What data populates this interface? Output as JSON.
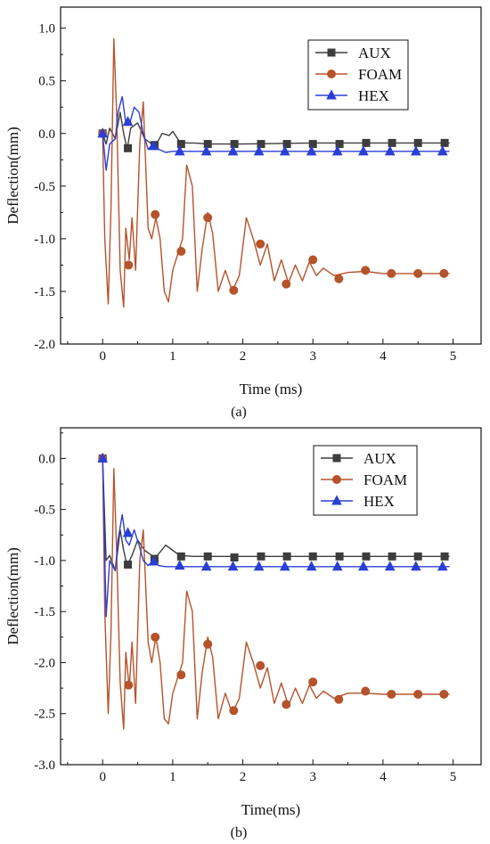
{
  "chart_data": [
    {
      "type": "line",
      "panel_label": "(a)",
      "xlabel": "Time (ms)",
      "ylabel": "Deflection(mm)",
      "xlim": [
        -0.6,
        5.4
      ],
      "ylim": [
        -2.0,
        1.2
      ],
      "xticks": [
        "0",
        "1",
        "2",
        "3",
        "4",
        "5"
      ],
      "yticks": [
        "1.0",
        "0.5",
        "0.0",
        "-0.5",
        "-1.0",
        "-1.5",
        "-2.0"
      ],
      "legend": "top-right",
      "series": [
        {
          "name": "AUX",
          "color": "#3d3d3d",
          "marker": "square",
          "x": [
            0,
            0.05,
            0.1,
            0.18,
            0.25,
            0.3,
            0.35,
            0.4,
            0.5,
            0.6,
            0.7,
            0.75,
            0.85,
            0.95,
            1.0,
            1.05,
            1.1,
            1.2,
            1.3,
            1.5,
            2,
            3,
            4,
            4.95
          ],
          "y": [
            0,
            -0.1,
            0.05,
            -0.05,
            0.2,
            0.0,
            -0.15,
            0.05,
            0.1,
            -0.05,
            -0.1,
            -0.12,
            0.0,
            -0.02,
            0.02,
            -0.03,
            -0.08,
            -0.09,
            -0.09,
            -0.1,
            -0.1,
            -0.09,
            -0.09,
            -0.09
          ],
          "marker_x": [
            0,
            0.36,
            0.74,
            1.12,
            1.5,
            1.88,
            2.26,
            2.63,
            3.0,
            3.38,
            3.76,
            4.13,
            4.5,
            4.88
          ],
          "marker_y": [
            0,
            -0.14,
            -0.11,
            -0.1,
            -0.1,
            -0.1,
            -0.1,
            -0.1,
            -0.1,
            -0.1,
            -0.09,
            -0.09,
            -0.09,
            -0.09
          ]
        },
        {
          "name": "FOAM",
          "color": "#b5532b",
          "marker": "circle",
          "x": [
            0,
            0.03,
            0.08,
            0.12,
            0.16,
            0.2,
            0.25,
            0.3,
            0.33,
            0.38,
            0.42,
            0.47,
            0.53,
            0.58,
            0.65,
            0.7,
            0.76,
            0.82,
            0.88,
            0.94,
            1.0,
            1.07,
            1.14,
            1.2,
            1.28,
            1.35,
            1.42,
            1.5,
            1.57,
            1.65,
            1.75,
            1.85,
            1.95,
            2.05,
            2.15,
            2.25,
            2.35,
            2.45,
            2.55,
            2.65,
            2.75,
            2.85,
            2.95,
            3.05,
            3.15,
            3.3,
            3.5,
            3.75,
            4.0,
            4.5,
            4.95
          ],
          "y": [
            0,
            -1.0,
            -1.62,
            -0.7,
            0.9,
            0.2,
            -1.3,
            -1.65,
            -0.9,
            -1.2,
            -0.8,
            -1.3,
            -0.1,
            0.3,
            -0.9,
            -1.0,
            -0.8,
            -1.0,
            -1.5,
            -1.6,
            -1.3,
            -1.15,
            -1.0,
            -0.3,
            -0.5,
            -1.5,
            -1.1,
            -0.75,
            -0.95,
            -1.5,
            -1.3,
            -1.5,
            -1.35,
            -0.8,
            -1.0,
            -1.25,
            -1.05,
            -1.4,
            -1.2,
            -1.42,
            -1.25,
            -1.4,
            -1.22,
            -1.35,
            -1.28,
            -1.35,
            -1.32,
            -1.31,
            -1.33,
            -1.33,
            -1.33
          ],
          "marker_x": [
            0,
            0.37,
            0.75,
            1.12,
            1.5,
            1.87,
            2.25,
            2.62,
            3.0,
            3.37,
            3.75,
            4.12,
            4.5,
            4.87
          ],
          "marker_y": [
            0,
            -1.25,
            -0.77,
            -1.12,
            -0.8,
            -1.49,
            -1.05,
            -1.43,
            -1.2,
            -1.38,
            -1.3,
            -1.33,
            -1.33,
            -1.33
          ]
        },
        {
          "name": "HEX",
          "color": "#2b3fd6",
          "marker": "triangle",
          "x": [
            0,
            0.05,
            0.1,
            0.18,
            0.22,
            0.28,
            0.33,
            0.38,
            0.45,
            0.52,
            0.58,
            0.65,
            0.72,
            0.8,
            0.9,
            1.0,
            1.5,
            2,
            3,
            4,
            4.95
          ],
          "y": [
            0,
            -0.35,
            -0.1,
            -0.05,
            0.2,
            0.35,
            0.1,
            0.08,
            0.25,
            0.2,
            0.0,
            -0.15,
            -0.1,
            -0.15,
            -0.18,
            -0.17,
            -0.17,
            -0.17,
            -0.17,
            -0.17,
            -0.17
          ],
          "marker_x": [
            0,
            0.36,
            0.73,
            1.1,
            1.48,
            1.86,
            2.23,
            2.6,
            2.98,
            3.35,
            3.72,
            4.1,
            4.47,
            4.85
          ],
          "marker_y": [
            0,
            0.11,
            -0.12,
            -0.17,
            -0.17,
            -0.17,
            -0.17,
            -0.17,
            -0.17,
            -0.17,
            -0.17,
            -0.17,
            -0.17,
            -0.17
          ]
        }
      ]
    },
    {
      "type": "line",
      "panel_label": "(b)",
      "xlabel": "Time(ms)",
      "ylabel": "Deflection(mm)",
      "xlim": [
        -0.6,
        5.4
      ],
      "ylim": [
        -3.0,
        0.3
      ],
      "xticks": [
        "0",
        "1",
        "2",
        "3",
        "4",
        "5"
      ],
      "yticks": [
        "0.0",
        "-0.5",
        "-1.0",
        "-1.5",
        "-2.0",
        "-2.5",
        "-3.0"
      ],
      "legend": "top-right",
      "series": [
        {
          "name": "AUX",
          "color": "#3d3d3d",
          "marker": "square",
          "x": [
            0,
            0.05,
            0.1,
            0.18,
            0.25,
            0.3,
            0.35,
            0.42,
            0.5,
            0.6,
            0.7,
            0.78,
            0.9,
            1.0,
            1.1,
            1.3,
            1.5,
            2,
            3,
            4,
            4.95
          ],
          "y": [
            0,
            -1.0,
            -0.95,
            -1.1,
            -0.7,
            -0.9,
            -1.05,
            -0.95,
            -0.8,
            -0.9,
            -0.95,
            -0.95,
            -0.85,
            -0.9,
            -0.95,
            -0.96,
            -0.96,
            -0.96,
            -0.96,
            -0.96,
            -0.96
          ],
          "marker_x": [
            0,
            0.36,
            0.74,
            1.12,
            1.5,
            1.88,
            2.26,
            2.63,
            3.0,
            3.38,
            3.76,
            4.13,
            4.5,
            4.88
          ],
          "marker_y": [
            0,
            -1.04,
            -0.99,
            -0.96,
            -0.96,
            -0.97,
            -0.96,
            -0.96,
            -0.96,
            -0.96,
            -0.96,
            -0.96,
            -0.96,
            -0.96
          ]
        },
        {
          "name": "FOAM",
          "color": "#b5532b",
          "marker": "circle",
          "x": [
            0,
            0.03,
            0.08,
            0.12,
            0.16,
            0.2,
            0.25,
            0.3,
            0.33,
            0.38,
            0.42,
            0.47,
            0.53,
            0.58,
            0.65,
            0.7,
            0.76,
            0.82,
            0.88,
            0.94,
            1.0,
            1.07,
            1.14,
            1.2,
            1.28,
            1.35,
            1.42,
            1.5,
            1.57,
            1.65,
            1.75,
            1.85,
            1.95,
            2.05,
            2.15,
            2.25,
            2.35,
            2.45,
            2.55,
            2.65,
            2.75,
            2.85,
            2.95,
            3.05,
            3.15,
            3.3,
            3.5,
            3.75,
            4.0,
            4.5,
            4.95
          ],
          "y": [
            0,
            -1.5,
            -2.5,
            -1.7,
            -0.1,
            -0.9,
            -2.2,
            -2.65,
            -1.9,
            -2.25,
            -1.8,
            -2.4,
            -1.0,
            -0.7,
            -1.8,
            -2.0,
            -1.75,
            -2.0,
            -2.55,
            -2.6,
            -2.3,
            -2.15,
            -2.0,
            -1.3,
            -1.5,
            -2.55,
            -2.1,
            -1.75,
            -1.95,
            -2.55,
            -2.3,
            -2.5,
            -2.35,
            -1.8,
            -2.0,
            -2.25,
            -2.05,
            -2.4,
            -2.2,
            -2.42,
            -2.25,
            -2.4,
            -2.22,
            -2.35,
            -2.28,
            -2.35,
            -2.3,
            -2.3,
            -2.31,
            -2.31,
            -2.31
          ],
          "marker_x": [
            0,
            0.37,
            0.75,
            1.12,
            1.5,
            1.87,
            2.25,
            2.62,
            3.0,
            3.37,
            3.75,
            4.12,
            4.5,
            4.87
          ],
          "marker_y": [
            0,
            -2.22,
            -1.75,
            -2.12,
            -1.82,
            -2.47,
            -2.03,
            -2.41,
            -2.19,
            -2.36,
            -2.28,
            -2.31,
            -2.31,
            -2.31
          ]
        },
        {
          "name": "HEX",
          "color": "#2b3fd6",
          "marker": "triangle",
          "x": [
            0,
            0.05,
            0.1,
            0.18,
            0.22,
            0.28,
            0.33,
            0.38,
            0.45,
            0.52,
            0.58,
            0.65,
            0.72,
            0.8,
            0.9,
            1.0,
            1.5,
            2,
            3,
            4,
            4.95
          ],
          "y": [
            0,
            -1.55,
            -1.0,
            -1.1,
            -0.8,
            -0.55,
            -0.8,
            -0.85,
            -0.7,
            -0.85,
            -1.0,
            -1.05,
            -1.0,
            -1.05,
            -1.06,
            -1.06,
            -1.06,
            -1.06,
            -1.06,
            -1.06,
            -1.06
          ],
          "marker_x": [
            0,
            0.36,
            0.73,
            1.1,
            1.48,
            1.86,
            2.23,
            2.6,
            2.98,
            3.35,
            3.72,
            4.1,
            4.47,
            4.85
          ],
          "marker_y": [
            0,
            -0.73,
            -1.01,
            -1.05,
            -1.06,
            -1.06,
            -1.06,
            -1.06,
            -1.06,
            -1.06,
            -1.06,
            -1.06,
            -1.06,
            -1.06
          ]
        }
      ]
    }
  ]
}
